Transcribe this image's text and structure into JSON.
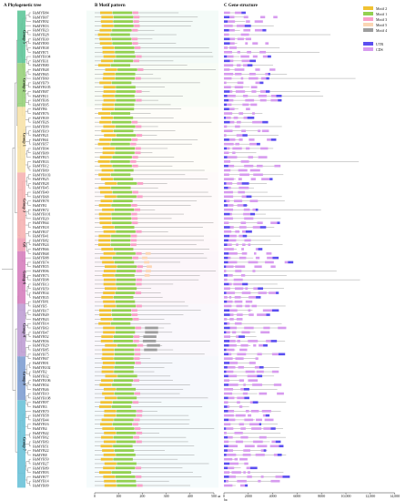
{
  "titles": {
    "a": "A Phylogenetic tree",
    "b": "B Motif pattern",
    "c": "C Gene structure"
  },
  "motif_legend": [
    {
      "label": "Motif 2",
      "color": "#f1c232"
    },
    {
      "label": "Motif 1",
      "color": "#93d150"
    },
    {
      "label": "Motif 3",
      "color": "#f9a0c8"
    },
    {
      "label": "Motif 5",
      "color": "#fbd6b4"
    },
    {
      "label": "Motif 4",
      "color": "#9e9e9e"
    }
  ],
  "structure_legend": [
    {
      "label": "UTR",
      "color": "#5b4ff0"
    },
    {
      "label": "CDS",
      "color": "#d79bef"
    }
  ],
  "groups": [
    {
      "label": "Group 5",
      "color": "#5fc79a",
      "start": 0,
      "count": 12
    },
    {
      "label": "Group 2",
      "color": "#98d27a",
      "start": 12,
      "count": 10
    },
    {
      "label": "Group 1",
      "color": "#f7e2a8",
      "start": 22,
      "count": 15
    },
    {
      "label": "Group 3",
      "color": "#f6b3b3",
      "start": 37,
      "count": 15
    },
    {
      "label": "G6",
      "color": "#f19eb6",
      "start": 52,
      "count": 3
    },
    {
      "label": "Group 6",
      "color": "#d67fbe",
      "start": 55,
      "count": 12
    },
    {
      "label": "Group 4",
      "color": "#bf9fd4",
      "start": 67,
      "count": 12
    },
    {
      "label": "Group 8",
      "color": "#7f9ed2",
      "start": 79,
      "count": 10
    },
    {
      "label": "Group 7",
      "color": "#6cc2d8",
      "start": 89,
      "count": 20
    }
  ],
  "genes": [
    "HuMYB84",
    "HuMYB07",
    "HuMYB92",
    "HuMYB53",
    "HuMYB23",
    "HuMYB28",
    "HuMYB30",
    "HuMYB90",
    "HuMYB38",
    "HuMYB71",
    "HuMYB104",
    "HuMYB31",
    "HuMYB80",
    "HuMYB48",
    "HuMYB65",
    "HuMYB60",
    "HuMYB79",
    "HuMYB105",
    "HuMYB87",
    "HuMYB11",
    "HuMYB36",
    "HuMYB95",
    "HuMYB6",
    "HuMYB76",
    "HuMYB39",
    "HuMYB26",
    "HuMYB99",
    "HuMYB19",
    "HuMYB21",
    "HuMYB61",
    "HuMYB57",
    "HuMYB94",
    "HuMYB09",
    "HuMYB15",
    "HuMYB33",
    "HuMYB12",
    "HuMYB69",
    "HuMYB103",
    "HuMYB25",
    "HuMYB28",
    "HuMYB45",
    "HuMYB40",
    "HuMYB68",
    "HuMYB78",
    "HuMYB1",
    "HuMYB72",
    "HuMYB101",
    "HuMYB20",
    "HuMYB64",
    "HuMYB18",
    "HuMYB37",
    "HuMYB41",
    "HuMYB82",
    "HuMYB24",
    "HuMYB66",
    "HuMYB68",
    "HuMYB88",
    "HuMYB74",
    "HuMYB55",
    "HuMYB96",
    "HuMYB73",
    "HuMYB98",
    "HuMYB13",
    "HuMYB59",
    "HuMYB34",
    "HuMYB35",
    "HuMYB81",
    "HuMYB5",
    "HuMYB17",
    "HuMYB49",
    "HuMYB43",
    "HuMYB14",
    "HuMYB63",
    "HuMYB47",
    "HuMYB52",
    "HuMYB56",
    "HuMYB29",
    "HuMYB85",
    "HuMYB75",
    "HuMYB67",
    "HuMYB91",
    "HuMYB102",
    "HuMYB2",
    "HuMYB32",
    "HuMYB106",
    "HuMYB54",
    "HuMYB46",
    "HuMYB10",
    "HuMYB108",
    "HuMYB97",
    "HuMYB3",
    "HuMYB70",
    "HuMYB58",
    "HuMYB44",
    "HuMYB16",
    "HuMYB4",
    "HuMYB42",
    "HuMYB62",
    "HuMYB83",
    "HuMYB51",
    "HuMYB22",
    "HuMYB8",
    "HuMYB50",
    "HuMYB27",
    "HuMYB89",
    "HuMYB93",
    "HuMYB77",
    "HuMYB14",
    "HuMYB09"
  ],
  "motif_axis": {
    "ticks": [
      "0",
      "100",
      "200",
      "300",
      "400",
      "500"
    ],
    "unit": "aa",
    "max": 500
  },
  "structure_axis": {
    "ticks": [
      "0",
      "2000",
      "4000",
      "6000",
      "8000",
      "10,000",
      "12,000",
      "14,000"
    ],
    "unit": "bp",
    "max": 14000
  }
}
